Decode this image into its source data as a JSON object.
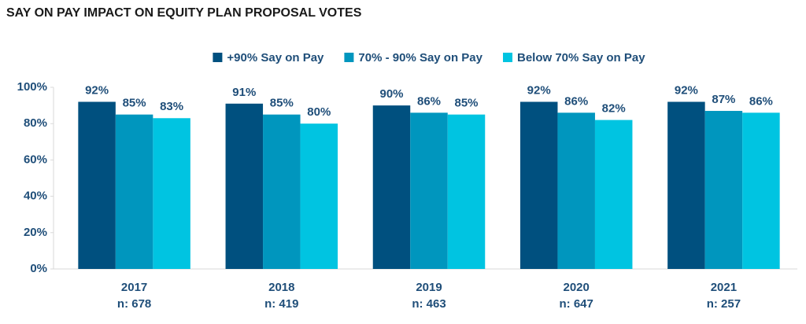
{
  "chart_data": {
    "type": "bar",
    "title": "SAY ON PAY IMPACT ON EQUITY PLAN PROPOSAL VOTES",
    "categories": [
      "2017",
      "2018",
      "2019",
      "2020",
      "2021"
    ],
    "category_notes": [
      "n: 678",
      "n: 419",
      "n: 463",
      "n: 647",
      "n: 257"
    ],
    "series": [
      {
        "name": "+90% Say on Pay",
        "color": "#00507f",
        "values": [
          92,
          91,
          90,
          92,
          92
        ],
        "value_labels": [
          "92%",
          "91%",
          "90%",
          "92%",
          "92%"
        ]
      },
      {
        "name": "70% - 90% Say on Pay",
        "color": "#0096be",
        "values": [
          85,
          85,
          86,
          86,
          87
        ],
        "value_labels": [
          "85%",
          "85%",
          "86%",
          "86%",
          "87%"
        ]
      },
      {
        "name": "Below 70% Say on Pay",
        "color": "#00c4e1",
        "values": [
          83,
          80,
          85,
          82,
          86
        ],
        "value_labels": [
          "83%",
          "80%",
          "85%",
          "82%",
          "86%"
        ]
      }
    ],
    "ylim": [
      0,
      100
    ],
    "yticks": [
      {
        "value": 0,
        "label": "0%"
      },
      {
        "value": 20,
        "label": "20%"
      },
      {
        "value": 40,
        "label": "40%"
      },
      {
        "value": 60,
        "label": "60%"
      },
      {
        "value": 80,
        "label": "80%"
      },
      {
        "value": 100,
        "label": "100%"
      }
    ],
    "grid": false,
    "legend": "top"
  }
}
